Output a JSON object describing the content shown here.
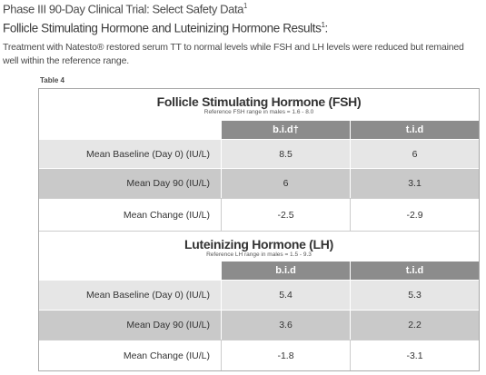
{
  "header": {
    "title": "Phase III 90-Day Clinical Trial: Select Safety Data",
    "title_sup": "1",
    "subtitle": "Follicle Stimulating Hormone and Luteinizing Hormone Results",
    "subtitle_sup": "1",
    "subtitle_end": ":",
    "description": "Treatment with Natesto® restored serum TT to normal levels while FSH and LH levels were reduced but remained well within the reference range."
  },
  "table": {
    "label": "Table 4",
    "sections": [
      {
        "title": "Follicle Stimulating Hormone (FSH)",
        "note": "Reference FSH range in males = 1.6 - 8.0",
        "columns": [
          "b.i.d†",
          "t.i.d"
        ],
        "rows": [
          [
            "Mean Baseline (Day 0) (IU/L)",
            "8.5",
            "6"
          ],
          [
            "Mean Day 90 (IU/L)",
            "6",
            "3.1"
          ],
          [
            "Mean Change (IU/L)",
            "-2.5",
            "-2.9"
          ]
        ]
      },
      {
        "title": "Luteinizing Hormone (LH)",
        "note": "Reference LH range in males = 1.5 - 9.3",
        "columns": [
          "b.i.d",
          "t.i.d"
        ],
        "rows": [
          [
            "Mean Baseline (Day 0) (IU/L)",
            "5.4",
            "5.3"
          ],
          [
            "Mean Day 90 (IU/L)",
            "3.6",
            "2.2"
          ],
          [
            "Mean Change (IU/L)",
            "-1.8",
            "-3.1"
          ]
        ]
      }
    ]
  }
}
